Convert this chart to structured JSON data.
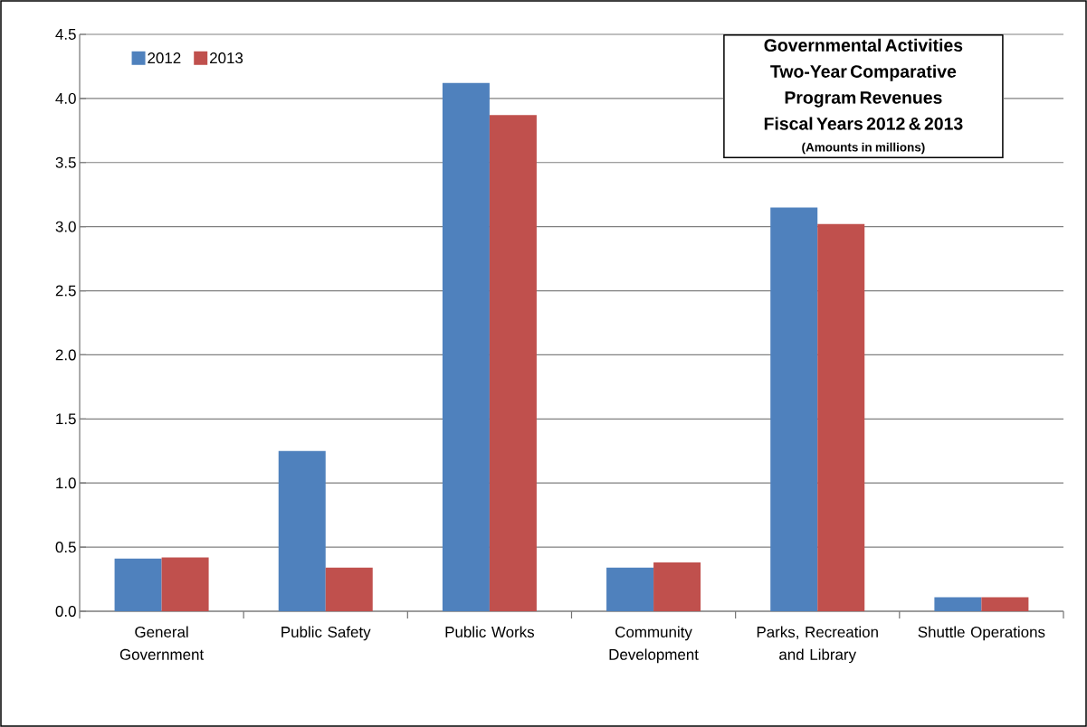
{
  "chart_data": {
    "type": "bar",
    "title": "Governmental Activities Two-Year Comparative Program Revenues Fiscal Years 2012 & 2013",
    "subtitle": "(Amounts in millions)",
    "categories": [
      "General Government",
      "Public Safety",
      "Public Works",
      "Community Development",
      "Parks, Recreation and Library",
      "Shuttle Operations"
    ],
    "series": [
      {
        "name": "2012",
        "color": "#4f81bd",
        "values": [
          0.41,
          1.25,
          4.12,
          0.34,
          3.15,
          0.11
        ]
      },
      {
        "name": "2013",
        "color": "#c0504d",
        "values": [
          0.42,
          0.34,
          3.87,
          0.38,
          3.02,
          0.11
        ]
      }
    ],
    "ylim": [
      0,
      4.5
    ],
    "yticks": [
      {
        "value": 0,
        "label": "0.0"
      },
      {
        "value": 0.5,
        "label": "0.5"
      },
      {
        "value": 1,
        "label": "1.0"
      },
      {
        "value": 1.5,
        "label": "1.5"
      },
      {
        "value": 2,
        "label": "2.0"
      },
      {
        "value": 2.5,
        "label": "2.5"
      },
      {
        "value": 3,
        "label": "3.0"
      },
      {
        "value": 3.5,
        "label": "3.5"
      },
      {
        "value": 4,
        "label": "4.0"
      },
      {
        "value": 4.5,
        "label": "4.5"
      }
    ],
    "grid": "y",
    "legend": "top left"
  }
}
